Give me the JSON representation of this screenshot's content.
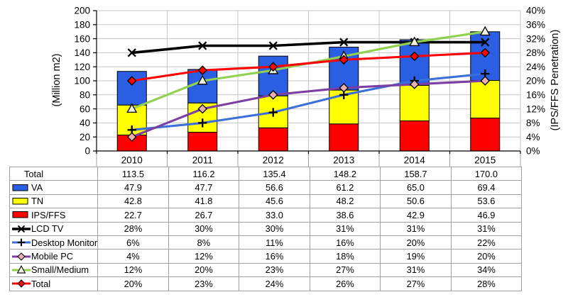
{
  "chart_data": {
    "type": "combo",
    "title": "",
    "categories": [
      "2010",
      "2011",
      "2012",
      "2013",
      "2014",
      "2015"
    ],
    "left_axis": {
      "label": "(Million m2)",
      "min": 0,
      "max": 200,
      "step": 20
    },
    "right_axis": {
      "label": "(IPS/FFS Penetration)",
      "min": 0,
      "max": 40,
      "step": 4,
      "unit": "%"
    },
    "grid": true,
    "legend_position": "table-left-column",
    "bar_stack_order": "bottom-to-top",
    "bar_series": [
      {
        "name": "IPS/FFS",
        "color": "#FF0000",
        "values": [
          22.7,
          26.7,
          33.0,
          38.6,
          42.9,
          46.9
        ]
      },
      {
        "name": "TN",
        "color": "#FFFF00",
        "values": [
          42.8,
          41.8,
          45.6,
          48.2,
          50.6,
          53.6
        ]
      },
      {
        "name": "VA",
        "color": "#2B5FE3",
        "values": [
          47.9,
          47.7,
          56.6,
          61.2,
          65.0,
          69.4
        ]
      }
    ],
    "bar_total": [
      113.5,
      116.2,
      135.4,
      148.2,
      158.7,
      170.0
    ],
    "line_series": [
      {
        "name": "LCD TV",
        "axis": "right",
        "color": "#000000",
        "marker": "x",
        "marker_fill": "#000000",
        "values": [
          28,
          30,
          30,
          31,
          31,
          31
        ]
      },
      {
        "name": "Desktop Monitor",
        "axis": "right",
        "color": "#3C70D9",
        "marker": "plus",
        "marker_fill": "#000000",
        "values": [
          6,
          8,
          11,
          16,
          20,
          22
        ]
      },
      {
        "name": "Mobile PC",
        "axis": "right",
        "color": "#7B3FA4",
        "marker": "diamond",
        "marker_fill": "#E9B1AE",
        "values": [
          4,
          12,
          16,
          18,
          19,
          20
        ]
      },
      {
        "name": "Small/Medium",
        "axis": "right",
        "color": "#92D050",
        "marker": "triangle",
        "marker_fill": "#EFEEE2",
        "values": [
          12,
          20,
          23,
          27,
          31,
          34
        ]
      },
      {
        "name": "Total",
        "axis": "right",
        "color": "#FF0000",
        "marker": "diamond",
        "marker_fill": "#FF0000",
        "values": [
          20,
          23,
          24,
          26,
          27,
          28
        ]
      }
    ]
  },
  "table": {
    "header_years": [
      "2010",
      "2011",
      "2012",
      "2013",
      "2014",
      "2015"
    ],
    "rows": [
      {
        "label": "Total",
        "legend": "none",
        "values": [
          "113.5",
          "116.2",
          "135.4",
          "148.2",
          "158.7",
          "170.0"
        ]
      },
      {
        "label": "VA",
        "legend": "swatch",
        "color": "#2B5FE3",
        "values": [
          "47.9",
          "47.7",
          "56.6",
          "61.2",
          "65.0",
          "69.4"
        ]
      },
      {
        "label": "TN",
        "legend": "swatch",
        "color": "#FFFF00",
        "values": [
          "42.8",
          "41.8",
          "45.6",
          "48.2",
          "50.6",
          "53.6"
        ]
      },
      {
        "label": "IPS/FFS",
        "legend": "swatch",
        "color": "#FF0000",
        "values": [
          "22.7",
          "26.7",
          "33.0",
          "38.6",
          "42.9",
          "46.9"
        ]
      },
      {
        "label": "LCD TV",
        "legend": "line",
        "color": "#000000",
        "marker": "x",
        "marker_fill": "#000000",
        "values": [
          "28%",
          "30%",
          "30%",
          "31%",
          "31%",
          "31%"
        ]
      },
      {
        "label": "Desktop Monitor",
        "legend": "line",
        "color": "#3C70D9",
        "marker": "plus",
        "marker_fill": "#000000",
        "values": [
          "6%",
          "8%",
          "11%",
          "16%",
          "20%",
          "22%"
        ]
      },
      {
        "label": "Mobile PC",
        "legend": "line",
        "color": "#7B3FA4",
        "marker": "diamond",
        "marker_fill": "#E9B1AE",
        "values": [
          "4%",
          "12%",
          "16%",
          "18%",
          "19%",
          "20%"
        ]
      },
      {
        "label": "Small/Medium",
        "legend": "line",
        "color": "#92D050",
        "marker": "triangle",
        "marker_fill": "#EFEEE2",
        "values": [
          "12%",
          "20%",
          "23%",
          "27%",
          "31%",
          "34%"
        ]
      },
      {
        "label": "Total",
        "legend": "line",
        "color": "#FF0000",
        "marker": "diamond",
        "marker_fill": "#FF0000",
        "values": [
          "20%",
          "23%",
          "24%",
          "26%",
          "27%",
          "28%"
        ],
        "muted_last": true
      }
    ]
  },
  "colors": {
    "grid": "#C6C6C6",
    "axis": "#000000",
    "table_border": "#A0A0A0",
    "muted_text": "#7F7F7F",
    "background": "#FFFFFF"
  }
}
